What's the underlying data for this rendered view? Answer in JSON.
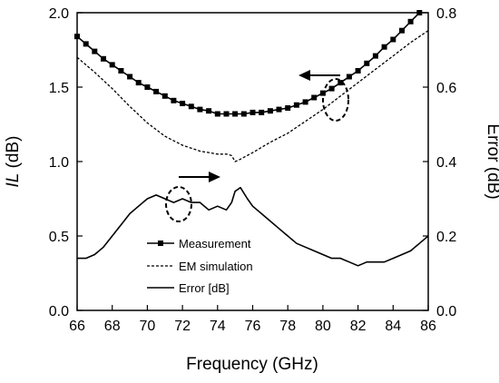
{
  "chart_data": {
    "type": "line",
    "xlabel": "Frequency (GHz)",
    "ylabel_left_italic": "IL",
    "ylabel_left_unit": " (dB)",
    "ylabel_right": "Error (dB)",
    "xlim": [
      66,
      86
    ],
    "ylim_left": [
      0,
      2.0
    ],
    "ylim_right": [
      0,
      0.8
    ],
    "xticks": [
      "66",
      "68",
      "70",
      "72",
      "74",
      "76",
      "78",
      "80",
      "82",
      "84",
      "86"
    ],
    "yticks_left": [
      "0.0",
      "0.5",
      "1.0",
      "1.5",
      "2.0"
    ],
    "yticks_right": [
      "0.0",
      "0.2",
      "0.4",
      "0.6",
      "0.8"
    ],
    "legend_position": "bottom-center",
    "series": [
      {
        "name": "Measurement",
        "axis": "left",
        "style": "solid-square-markers",
        "color": "#000000",
        "x": [
          66,
          66.5,
          67,
          67.5,
          68,
          68.5,
          69,
          69.5,
          70,
          70.5,
          71,
          71.5,
          72,
          72.5,
          73,
          73.5,
          74,
          74.5,
          75,
          75.5,
          76,
          76.5,
          77,
          77.5,
          78,
          78.5,
          79,
          79.5,
          80,
          80.5,
          81,
          81.5,
          82,
          82.5,
          83,
          83.5,
          84,
          84.5,
          85,
          85.5
        ],
        "y": [
          1.84,
          1.79,
          1.74,
          1.69,
          1.65,
          1.61,
          1.57,
          1.53,
          1.5,
          1.47,
          1.44,
          1.41,
          1.39,
          1.37,
          1.35,
          1.34,
          1.32,
          1.32,
          1.32,
          1.32,
          1.33,
          1.33,
          1.34,
          1.35,
          1.36,
          1.38,
          1.4,
          1.43,
          1.46,
          1.49,
          1.53,
          1.57,
          1.61,
          1.66,
          1.71,
          1.77,
          1.82,
          1.88,
          1.94,
          2.0
        ]
      },
      {
        "name": "EM simulation",
        "axis": "left",
        "style": "dashed",
        "color": "#000000",
        "x": [
          66,
          67,
          68,
          69,
          70,
          71,
          72,
          73,
          74,
          74.5,
          74.8,
          75,
          75.2,
          76,
          77,
          78,
          79,
          80,
          81,
          82,
          83,
          84,
          85,
          86
        ],
        "y": [
          1.7,
          1.6,
          1.49,
          1.37,
          1.26,
          1.17,
          1.11,
          1.07,
          1.05,
          1.05,
          1.04,
          1.0,
          1.01,
          1.06,
          1.13,
          1.19,
          1.27,
          1.35,
          1.44,
          1.53,
          1.62,
          1.71,
          1.8,
          1.88
        ]
      },
      {
        "name": "Error [dB]",
        "axis": "right",
        "style": "solid",
        "color": "#000000",
        "x": [
          66,
          66.5,
          67,
          67.5,
          68,
          68.5,
          69,
          69.5,
          70,
          70.5,
          71,
          71.5,
          72,
          72.5,
          73,
          73.5,
          74,
          74.5,
          74.8,
          75,
          75.3,
          75.7,
          76,
          76.5,
          77,
          77.5,
          78,
          78.5,
          79,
          79.5,
          80,
          80.5,
          81,
          81.5,
          82,
          82.5,
          83,
          83.5,
          84,
          84.5,
          85,
          85.5,
          86
        ],
        "y": [
          0.14,
          0.14,
          0.15,
          0.17,
          0.2,
          0.23,
          0.26,
          0.28,
          0.3,
          0.31,
          0.3,
          0.29,
          0.3,
          0.29,
          0.29,
          0.27,
          0.28,
          0.27,
          0.29,
          0.32,
          0.33,
          0.3,
          0.28,
          0.26,
          0.24,
          0.22,
          0.2,
          0.18,
          0.17,
          0.16,
          0.15,
          0.14,
          0.14,
          0.13,
          0.12,
          0.13,
          0.13,
          0.13,
          0.14,
          0.15,
          0.16,
          0.18,
          0.2
        ]
      }
    ]
  }
}
